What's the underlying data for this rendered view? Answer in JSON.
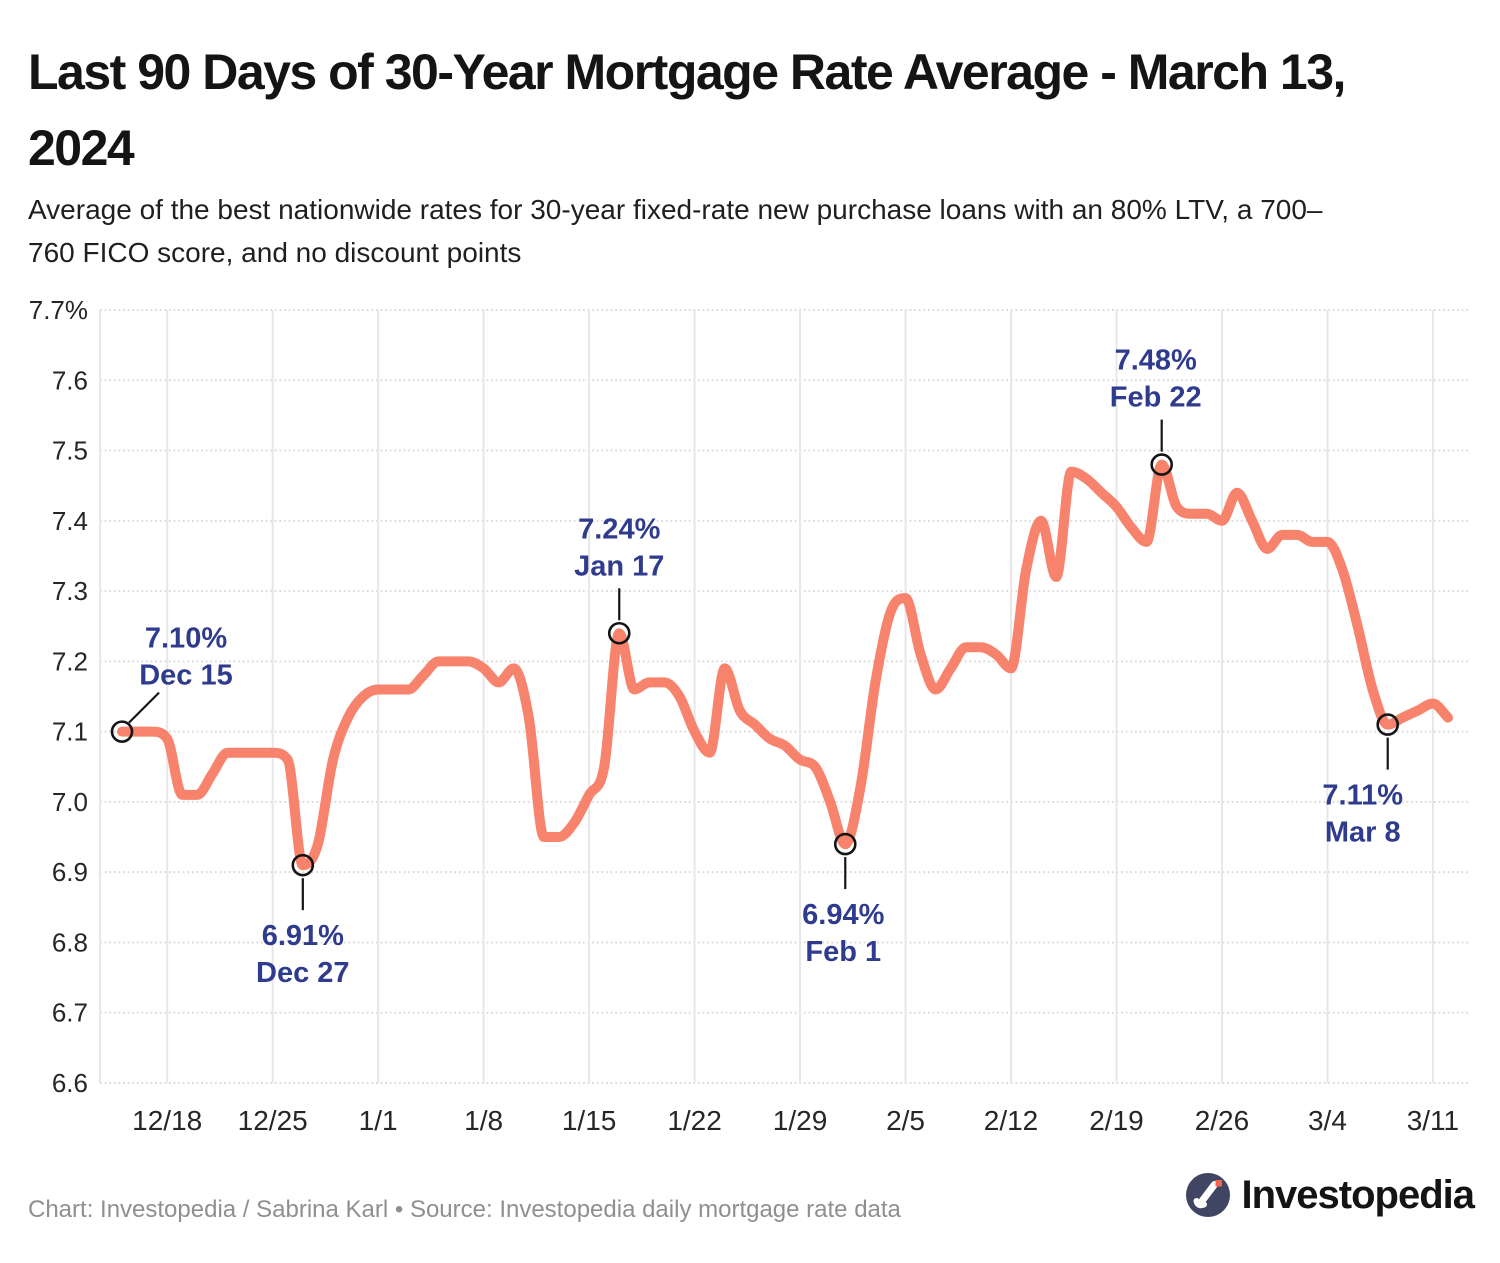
{
  "header": {
    "title": "Last 90 Days of 30-Year Mortgage Rate Average - March 13,\n2024",
    "subtitle": "Average of the best nationwide rates for 30-year fixed-rate new purchase loans with an 80% LTV, a 700–\n760 FICO score, and no discount points"
  },
  "footer": {
    "credit": "Chart: Investopedia / Sabrina Karl • Source: Investopedia daily mortgage rate data",
    "logo_text": "Investopedia"
  },
  "colors": {
    "line": "#F8836C",
    "annotation": "#2F3B8D",
    "grid_vertical": "#E7E7E7",
    "grid_horizontal": "#DBDBDB",
    "axis_label": "#262626",
    "marker_ring": "#151515",
    "connector": "#151515",
    "logo_circle": "#3F4562",
    "logo_dot": "#F2654C",
    "logo_mark": "#FFFFFF"
  },
  "chart_data": {
    "type": "line",
    "title": "Last 90 Days of 30-Year Mortgage Rate Average - March 13, 2024",
    "xlabel": "",
    "ylabel": "",
    "ylim": [
      6.6,
      7.7
    ],
    "grid": true,
    "legend": false,
    "x": [
      "12/15",
      "12/16",
      "12/17",
      "12/18",
      "12/19",
      "12/20",
      "12/21",
      "12/22",
      "12/23",
      "12/24",
      "12/25",
      "12/26",
      "12/27",
      "12/28",
      "12/29",
      "12/30",
      "12/31",
      "1/1",
      "1/2",
      "1/3",
      "1/4",
      "1/5",
      "1/6",
      "1/7",
      "1/8",
      "1/9",
      "1/10",
      "1/11",
      "1/12",
      "1/13",
      "1/14",
      "1/15",
      "1/16",
      "1/17",
      "1/18",
      "1/19",
      "1/20",
      "1/21",
      "1/22",
      "1/23",
      "1/24",
      "1/25",
      "1/26",
      "1/27",
      "1/28",
      "1/29",
      "1/30",
      "1/31",
      "2/1",
      "2/2",
      "2/3",
      "2/4",
      "2/5",
      "2/6",
      "2/7",
      "2/8",
      "2/9",
      "2/10",
      "2/11",
      "2/12",
      "2/13",
      "2/14",
      "2/15",
      "2/16",
      "2/17",
      "2/18",
      "2/19",
      "2/20",
      "2/21",
      "2/22",
      "2/23",
      "2/24",
      "2/25",
      "2/26",
      "2/27",
      "2/28",
      "2/29",
      "3/1",
      "3/2",
      "3/3",
      "3/4",
      "3/5",
      "3/6",
      "3/7",
      "3/8",
      "3/9",
      "3/10",
      "3/11",
      "3/12"
    ],
    "values": [
      7.1,
      7.1,
      7.1,
      7.09,
      7.01,
      7.01,
      7.04,
      7.07,
      7.07,
      7.07,
      7.07,
      7.06,
      6.91,
      6.94,
      7.06,
      7.12,
      7.15,
      7.16,
      7.16,
      7.16,
      7.18,
      7.2,
      7.2,
      7.2,
      7.19,
      7.17,
      7.19,
      7.12,
      6.95,
      6.95,
      6.97,
      7.01,
      7.05,
      7.24,
      7.16,
      7.17,
      7.17,
      7.15,
      7.1,
      7.07,
      7.19,
      7.13,
      7.11,
      7.09,
      7.08,
      7.06,
      7.05,
      7.0,
      6.94,
      7.02,
      7.17,
      7.27,
      7.29,
      7.21,
      7.16,
      7.19,
      7.22,
      7.22,
      7.21,
      7.19,
      7.33,
      7.4,
      7.32,
      7.47,
      7.46,
      7.44,
      7.42,
      7.39,
      7.37,
      7.48,
      7.42,
      7.41,
      7.41,
      7.4,
      7.44,
      7.4,
      7.36,
      7.38,
      7.38,
      7.37,
      7.37,
      7.33,
      7.25,
      7.16,
      7.11,
      7.12,
      7.13,
      7.14,
      7.12
    ],
    "y_ticks": [
      6.6,
      6.7,
      6.8,
      6.9,
      7.0,
      7.1,
      7.2,
      7.3,
      7.4,
      7.5,
      7.6,
      7.7
    ],
    "y_tick_labels": [
      "6.6",
      "6.7",
      "6.8",
      "6.9",
      "7.0",
      "7.1",
      "7.2",
      "7.3",
      "7.4",
      "7.5",
      "7.6",
      "7.7%"
    ],
    "x_tick_labels": [
      "12/18",
      "12/25",
      "1/1",
      "1/8",
      "1/15",
      "1/22",
      "1/29",
      "2/5",
      "2/12",
      "2/19",
      "2/26",
      "3/4",
      "3/11"
    ],
    "x_tick_day_indices": [
      3,
      10,
      17,
      24,
      31,
      38,
      45,
      52,
      59,
      66,
      73,
      80,
      87
    ],
    "annotations": [
      {
        "value_label": "7.10%",
        "date_label": "Dec 15",
        "day_index": 0,
        "value": 7.1,
        "placement": "diag",
        "dx": 64
      },
      {
        "value_label": "6.91%",
        "date_label": "Dec 27",
        "day_index": 12,
        "value": 6.91,
        "placement": "below",
        "dx": 0
      },
      {
        "value_label": "7.24%",
        "date_label": "Jan 17",
        "day_index": 33,
        "value": 7.24,
        "placement": "above",
        "dx": 0
      },
      {
        "value_label": "6.94%",
        "date_label": "Feb 1",
        "day_index": 48,
        "value": 6.94,
        "placement": "below",
        "dx": -2
      },
      {
        "value_label": "7.48%",
        "date_label": "Feb 22",
        "day_index": 69,
        "value": 7.48,
        "placement": "above",
        "dx": -6
      },
      {
        "value_label": "7.11%",
        "date_label": "Mar 8",
        "day_index": 84,
        "value": 7.11,
        "placement": "below",
        "dx": -25
      }
    ]
  }
}
